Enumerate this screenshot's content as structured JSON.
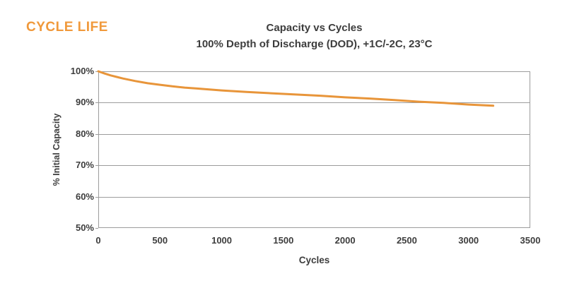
{
  "page": {
    "heading": "CYCLE LIFE"
  },
  "colors": {
    "heading_orange": "#F0993B",
    "curve_orange": "#E8953A",
    "grid_gray": "#9C9C9C",
    "text_dark": "#3D3D3D",
    "background": "#FFFFFF"
  },
  "chart_data": {
    "type": "line",
    "title": "Capacity vs Cycles",
    "subtitle": "100% Depth of Discharge (DOD), +1C/-2C, 23°C",
    "xlabel": "Cycles",
    "ylabel": "% Initial Capacity",
    "xlim": [
      0,
      3500
    ],
    "ylim": [
      50,
      100
    ],
    "grid": "horizontal-only",
    "legend": "none",
    "xticks": [
      {
        "value": 0,
        "label": "0"
      },
      {
        "value": 500,
        "label": "500"
      },
      {
        "value": 1000,
        "label": "1000"
      },
      {
        "value": 1500,
        "label": "1500"
      },
      {
        "value": 2000,
        "label": "2000"
      },
      {
        "value": 2500,
        "label": "2500"
      },
      {
        "value": 3000,
        "label": "3000"
      },
      {
        "value": 3500,
        "label": "3500"
      }
    ],
    "yticks": [
      {
        "value": 100,
        "label": "100%"
      },
      {
        "value": 90,
        "label": "90%"
      },
      {
        "value": 80,
        "label": "80%"
      },
      {
        "value": 70,
        "label": "70%"
      },
      {
        "value": 60,
        "label": "60%"
      },
      {
        "value": 50,
        "label": "50%"
      }
    ],
    "series": [
      {
        "name": "% Initial Capacity",
        "color": "#E8953A",
        "points": [
          [
            0,
            100
          ],
          [
            50,
            99.3
          ],
          [
            100,
            98.7
          ],
          [
            150,
            98.2
          ],
          [
            200,
            97.7
          ],
          [
            300,
            96.9
          ],
          [
            400,
            96.2
          ],
          [
            500,
            95.7
          ],
          [
            600,
            95.2
          ],
          [
            700,
            94.8
          ],
          [
            800,
            94.5
          ],
          [
            900,
            94.2
          ],
          [
            1000,
            93.9
          ],
          [
            1200,
            93.4
          ],
          [
            1400,
            93.0
          ],
          [
            1600,
            92.6
          ],
          [
            1800,
            92.2
          ],
          [
            2000,
            91.7
          ],
          [
            2200,
            91.3
          ],
          [
            2400,
            90.8
          ],
          [
            2600,
            90.3
          ],
          [
            2800,
            89.9
          ],
          [
            3000,
            89.4
          ],
          [
            3200,
            89.0
          ]
        ]
      }
    ]
  }
}
